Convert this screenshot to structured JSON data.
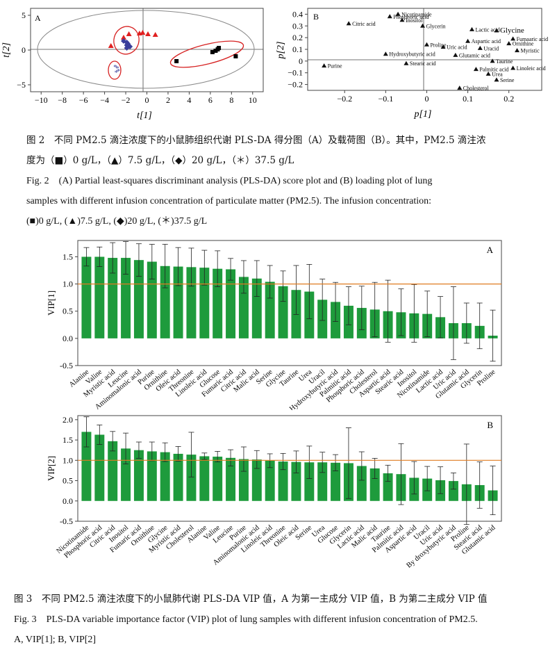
{
  "fig2": {
    "score_plot": {
      "panel_label": "A",
      "xlabel": "t[1]",
      "ylabel": "t[2]",
      "x_ticks": [
        "−10",
        "−8",
        "−6",
        "−4",
        "−2",
        "0",
        "2",
        "4",
        "6",
        "8",
        "10"
      ],
      "y_ticks": [
        "5",
        "0",
        "−5"
      ]
    },
    "loading_plot": {
      "panel_label": "B",
      "xlabel": "p[1]",
      "ylabel": "p[2]",
      "x_ticks": [
        "−0.2",
        "−0.1",
        "0",
        "0.1",
        "0.2"
      ],
      "y_ticks": [
        "0.4",
        "0.3",
        "0.2",
        "0.1",
        "0",
        "−0.1",
        "−0.2"
      ]
    },
    "caption_cn_line1": "图 2　不同 PM2.5 滴注浓度下的小鼠肺组织代谢 PLS-DA 得分图（A）及载荷图（B）。其中，PM2.5 滴注浓",
    "caption_cn_line2": "度为（■）0 g/L，（▲）7.5 g/L，（◆）20 g/L，（＊）37.5 g/L",
    "caption_en_line1": "Fig. 2　(A) Partial least-squares discriminant analysis (PLS-DA) score plot and (B) loading plot of lung",
    "caption_en_line2": "samples with different infusion concentration of particulate matter (PM2.5). The infusion concentration:",
    "caption_en_line3": "(■)0 g/L, (▲)7.5 g/L, (◆)20 g/L, (＊)37.5 g/L"
  },
  "fig3": {
    "caption_cn": "图 3　不同 PM2.5 滴注浓度下的小鼠肺代谢 PLS-DA VIP 值，A 为第一主成分 VIP 值，B 为第二主成分 VIP 值",
    "caption_en_line1": "Fig. 3　PLS-DA variable importance factor (VIP) plot of lung samples with different infusion concentration of PM2.5.",
    "caption_en_line2": "A, VIP[1]; B, VIP[2]"
  },
  "chart_data": [
    {
      "type": "scatter",
      "panel": "A",
      "xlabel": "t[1]",
      "ylabel": "t[2]",
      "xlim": [
        -11,
        11
      ],
      "ylim": [
        -6,
        6
      ],
      "series": [
        {
          "marker": "square",
          "color": "#000000",
          "points": [
            [
              2.8,
              -1.6
            ],
            [
              6.2,
              -0.3
            ],
            [
              6.5,
              -0.1
            ],
            [
              6.7,
              0.1
            ],
            [
              6.8,
              0.3
            ],
            [
              8.4,
              -0.9
            ]
          ]
        },
        {
          "marker": "triangle",
          "color": "#e02020",
          "points": [
            [
              -3.4,
              0.6
            ],
            [
              -1.7,
              2.3
            ],
            [
              -0.7,
              2.4
            ],
            [
              -0.4,
              2.5
            ],
            [
              0.1,
              2.3
            ],
            [
              0.8,
              2.2
            ],
            [
              -2.2,
              1.8
            ]
          ]
        },
        {
          "marker": "diamond",
          "color": "#3a3f9a",
          "points": [
            [
              -2.2,
              1.3
            ],
            [
              -1.9,
              1.1
            ],
            [
              -1.8,
              0.9
            ],
            [
              -1.9,
              0.7
            ],
            [
              -1.6,
              0.5
            ],
            [
              -1.9,
              0.3
            ]
          ]
        },
        {
          "marker": "asterisk",
          "color": "#3a3f9a",
          "points": [
            [
              -3.0,
              -2.4
            ],
            [
              -2.8,
              -2.6
            ],
            [
              -2.7,
              -3.0
            ],
            [
              -2.9,
              -3.2
            ]
          ]
        }
      ]
    },
    {
      "type": "scatter",
      "panel": "B",
      "xlabel": "p[1]",
      "ylabel": "p[2]",
      "xlim": [
        -0.29,
        0.28
      ],
      "ylim": [
        -0.25,
        0.45
      ],
      "points": [
        {
          "label": "Purine",
          "x": -0.25,
          "y": -0.04
        },
        {
          "label": "Citric acid",
          "x": -0.19,
          "y": 0.32
        },
        {
          "label": "Hydroxybutyric acid",
          "x": -0.1,
          "y": 0.06
        },
        {
          "label": "Nicotinamide",
          "x": -0.07,
          "y": 0.4
        },
        {
          "label": "Phosphoric acid",
          "x": -0.09,
          "y": 0.38
        },
        {
          "label": "Inositol",
          "x": -0.06,
          "y": 0.35
        },
        {
          "label": "Stearic acid",
          "x": -0.05,
          "y": -0.02
        },
        {
          "label": "Glycerin",
          "x": -0.01,
          "y": 0.3
        },
        {
          "label": "Proline",
          "x": 0.0,
          "y": 0.14
        },
        {
          "label": "Uric acid",
          "x": 0.04,
          "y": 0.12
        },
        {
          "label": "Glutamic acid",
          "x": 0.07,
          "y": 0.05
        },
        {
          "label": "Aspartic acid",
          "x": 0.1,
          "y": 0.17
        },
        {
          "label": "Lactic acid",
          "x": 0.11,
          "y": 0.27
        },
        {
          "label": "Uracid",
          "x": 0.13,
          "y": 0.11
        },
        {
          "label": "Glycine",
          "x": 0.17,
          "y": 0.26
        },
        {
          "label": "Fumaaric acid",
          "x": 0.21,
          "y": 0.19
        },
        {
          "label": "Ornithine",
          "x": 0.2,
          "y": 0.15
        },
        {
          "label": "Myristic",
          "x": 0.22,
          "y": 0.09
        },
        {
          "label": "Taurine",
          "x": 0.16,
          "y": 0.0
        },
        {
          "label": "Palmitic acid",
          "x": 0.12,
          "y": -0.07
        },
        {
          "label": "Urea",
          "x": 0.15,
          "y": -0.11
        },
        {
          "label": "Serine",
          "x": 0.17,
          "y": -0.16
        },
        {
          "label": "Linoleic acid",
          "x": 0.21,
          "y": -0.06
        },
        {
          "label": "Cholesterol",
          "x": 0.08,
          "y": -0.23
        }
      ]
    },
    {
      "type": "bar",
      "panel": "A",
      "ylabel": "VIP[1]",
      "ylim": [
        -0.5,
        1.8
      ],
      "yticks": [
        -0.5,
        0,
        0.5,
        1.0,
        1.5
      ],
      "reference_line": 1.0,
      "categories": [
        "Alanine",
        "Valine",
        "Myristic acid",
        "Leucine",
        "Aminomalonic acid",
        "Purine",
        "Ornithine",
        "Oleic acid",
        "Threonine",
        "Linoleic acid",
        "Glucose",
        "Fumaric acid",
        "Citric acid",
        "Malic acid",
        "Serine",
        "Glycine",
        "Taurine",
        "Urea",
        "Uracil",
        "Hydroxybutyric acid",
        "Palmitic acid",
        "Phosphoric acid",
        "Cholesterol",
        "Aspartic acid",
        "Stearic acid",
        "Inositol",
        "Nicotinamide",
        "Lactic acid",
        "Uric acid",
        "Glutamic acid",
        "Glycerin",
        "Proline"
      ],
      "values": [
        1.5,
        1.5,
        1.48,
        1.48,
        1.44,
        1.41,
        1.33,
        1.32,
        1.31,
        1.3,
        1.28,
        1.27,
        1.13,
        1.1,
        1.04,
        0.96,
        0.89,
        0.86,
        0.71,
        0.67,
        0.6,
        0.56,
        0.53,
        0.5,
        0.48,
        0.46,
        0.45,
        0.39,
        0.28,
        0.28,
        0.23,
        0.05
      ],
      "errors": [
        0.17,
        0.18,
        0.28,
        0.3,
        0.3,
        0.32,
        0.4,
        0.35,
        0.35,
        0.32,
        0.33,
        0.2,
        0.3,
        0.33,
        0.3,
        0.28,
        0.45,
        0.5,
        0.38,
        0.36,
        0.35,
        0.4,
        0.5,
        0.57,
        0.43,
        0.53,
        0.42,
        0.38,
        0.67,
        0.37,
        0.42,
        0.47
      ]
    },
    {
      "type": "bar",
      "panel": "B",
      "ylabel": "VIP[2]",
      "ylim": [
        -0.5,
        2.1
      ],
      "yticks": [
        -0.5,
        0,
        0.5,
        1.0,
        1.5,
        2.0
      ],
      "reference_line": 1.0,
      "categories": [
        "Nicotinamide",
        "Phosphoric acid",
        "Citric acid",
        "Inositol",
        "Fumaric acid",
        "Ornithine",
        "Glycine",
        "Myristic acid",
        "Cholesterol",
        "Alanine",
        "Valine",
        "Leucine",
        "Purine",
        "Aminomalonic acid",
        "Linoleic acid",
        "Threonine",
        "Oleic acid",
        "Serine",
        "Urea",
        "Glucose",
        "Glycerin",
        "Lactic acid",
        "Malic acid",
        "Taurine",
        "Palmitic acid",
        "Aspartic acid",
        "Uracil",
        "Uric acid",
        "By droxybutyric acid",
        "Proline",
        "Stearic acid",
        "Glutamic acid"
      ],
      "values": [
        1.7,
        1.63,
        1.47,
        1.29,
        1.25,
        1.22,
        1.2,
        1.16,
        1.14,
        1.1,
        1.09,
        1.06,
        1.03,
        1.02,
        0.99,
        0.97,
        0.96,
        0.95,
        0.95,
        0.94,
        0.93,
        0.86,
        0.8,
        0.68,
        0.66,
        0.57,
        0.55,
        0.51,
        0.49,
        0.41,
        0.39,
        0.26
      ],
      "errors": [
        0.37,
        0.24,
        0.24,
        0.38,
        0.2,
        0.23,
        0.23,
        0.18,
        0.55,
        0.08,
        0.13,
        0.2,
        0.3,
        0.22,
        0.17,
        0.2,
        0.27,
        0.4,
        0.25,
        0.2,
        0.87,
        0.35,
        0.25,
        0.2,
        0.75,
        0.4,
        0.3,
        0.33,
        0.2,
        0.99,
        0.57,
        0.6
      ]
    }
  ]
}
